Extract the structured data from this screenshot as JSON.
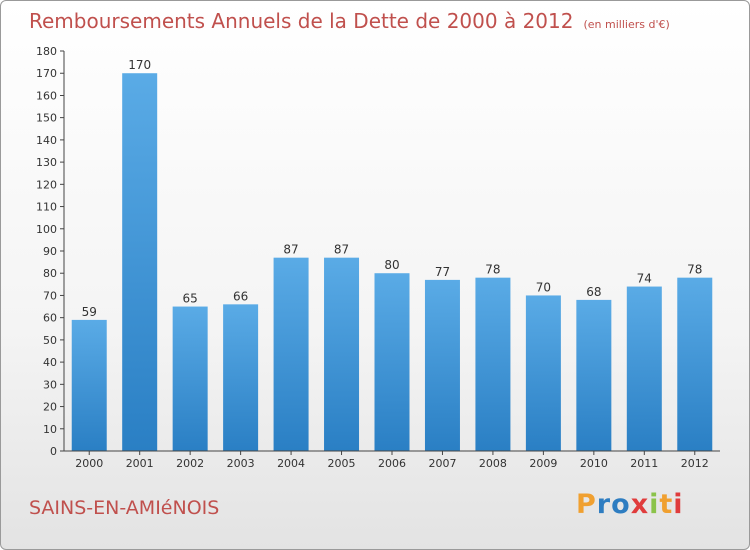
{
  "header": {
    "title": "Remboursements Annuels de la Dette de 2000 à 2012",
    "unit": "(en milliers d'€)"
  },
  "footer": {
    "commune": "SAINS-EN-AMIéNOIS",
    "logo_letters": [
      "P",
      "r",
      "o",
      "x",
      "i",
      "t",
      "i"
    ],
    "logo_colors": [
      "#f0a030",
      "#2e7dc1",
      "#2e7dc1",
      "#e03c3c",
      "#8bc34a",
      "#f0a030",
      "#e03c3c"
    ]
  },
  "colors": {
    "bar_top": "#5aabe6",
    "bar_bottom": "#2a7fc4",
    "title": "#c0504d"
  },
  "chart_data": {
    "type": "bar",
    "categories": [
      "2000",
      "2001",
      "2002",
      "2003",
      "2004",
      "2005",
      "2006",
      "2007",
      "2008",
      "2009",
      "2010",
      "2011",
      "2012"
    ],
    "values": [
      59,
      170,
      65,
      66,
      87,
      87,
      80,
      77,
      78,
      70,
      68,
      74,
      78
    ],
    "title": "Remboursements Annuels de la Dette de 2000 à 2012",
    "xlabel": "",
    "ylabel": "",
    "ylim": [
      0,
      180
    ],
    "ytick_step": 10,
    "grid": false,
    "legend": "none"
  }
}
